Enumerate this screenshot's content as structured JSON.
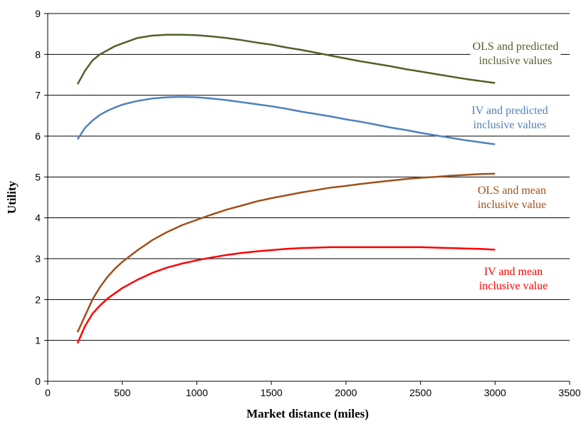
{
  "chart_data": {
    "type": "line",
    "title": "",
    "xlabel": "Market distance (miles)",
    "ylabel": "Utility",
    "xlim": [
      0,
      3500
    ],
    "ylim": [
      0,
      9
    ],
    "xticks": [
      0,
      500,
      1000,
      1500,
      2000,
      2500,
      3000,
      3500
    ],
    "yticks": [
      0,
      1,
      2,
      3,
      4,
      5,
      6,
      7,
      8,
      9
    ],
    "grid": "horizontal",
    "legend": "none",
    "annotations": [
      {
        "series": 0,
        "lines": [
          "OLS and predicted",
          "inclusive values"
        ]
      },
      {
        "series": 1,
        "lines": [
          "IV and predicted",
          "inclusive values"
        ]
      },
      {
        "series": 2,
        "lines": [
          "OLS and mean",
          "inclusive value"
        ]
      },
      {
        "series": 3,
        "lines": [
          "IV and mean",
          "inclusive value"
        ]
      }
    ],
    "series": [
      {
        "color": "#4f6228",
        "x": [
          200,
          250,
          300,
          350,
          400,
          450,
          500,
          600,
          700,
          800,
          900,
          1000,
          1100,
          1200,
          1300,
          1400,
          1500,
          1600,
          1700,
          1800,
          1900,
          2000,
          2100,
          2200,
          2300,
          2400,
          2500,
          2600,
          2700,
          2800,
          2900,
          3000
        ],
        "y": [
          7.27,
          7.6,
          7.85,
          8.0,
          8.1,
          8.2,
          8.27,
          8.4,
          8.46,
          8.48,
          8.48,
          8.47,
          8.44,
          8.4,
          8.35,
          8.29,
          8.24,
          8.17,
          8.11,
          8.04,
          7.97,
          7.9,
          7.83,
          7.77,
          7.71,
          7.64,
          7.58,
          7.52,
          7.46,
          7.4,
          7.35,
          7.3
        ]
      },
      {
        "color": "#4f81bd",
        "x": [
          200,
          250,
          300,
          350,
          400,
          450,
          500,
          600,
          700,
          800,
          900,
          1000,
          1100,
          1200,
          1300,
          1400,
          1500,
          1600,
          1700,
          1800,
          1900,
          2000,
          2100,
          2200,
          2300,
          2400,
          2500,
          2600,
          2700,
          2800,
          2900,
          3000
        ],
        "y": [
          5.92,
          6.2,
          6.38,
          6.52,
          6.62,
          6.7,
          6.77,
          6.86,
          6.92,
          6.95,
          6.96,
          6.95,
          6.92,
          6.88,
          6.83,
          6.78,
          6.73,
          6.67,
          6.6,
          6.54,
          6.48,
          6.41,
          6.35,
          6.28,
          6.21,
          6.15,
          6.08,
          6.02,
          5.96,
          5.9,
          5.85,
          5.8
        ]
      },
      {
        "color": "#a0501a",
        "x": [
          200,
          250,
          300,
          350,
          400,
          450,
          500,
          600,
          700,
          800,
          900,
          1000,
          1100,
          1200,
          1300,
          1400,
          1500,
          1600,
          1700,
          1800,
          1900,
          2000,
          2100,
          2200,
          2300,
          2400,
          2500,
          2600,
          2700,
          2800,
          2900,
          3000
        ],
        "y": [
          1.2,
          1.6,
          2.0,
          2.3,
          2.55,
          2.75,
          2.92,
          3.2,
          3.45,
          3.65,
          3.82,
          3.95,
          4.08,
          4.2,
          4.3,
          4.4,
          4.48,
          4.55,
          4.62,
          4.68,
          4.74,
          4.78,
          4.83,
          4.87,
          4.91,
          4.95,
          4.98,
          5.0,
          5.03,
          5.05,
          5.07,
          5.08
        ]
      },
      {
        "color": "#ff0000",
        "x": [
          200,
          250,
          300,
          350,
          400,
          450,
          500,
          600,
          700,
          800,
          900,
          1000,
          1100,
          1200,
          1300,
          1400,
          1500,
          1600,
          1700,
          1800,
          1900,
          2000,
          2100,
          2200,
          2300,
          2400,
          2500,
          2600,
          2700,
          2800,
          2900,
          3000
        ],
        "y": [
          0.93,
          1.35,
          1.65,
          1.85,
          2.02,
          2.15,
          2.28,
          2.48,
          2.65,
          2.78,
          2.88,
          2.96,
          3.03,
          3.09,
          3.14,
          3.18,
          3.21,
          3.24,
          3.26,
          3.27,
          3.28,
          3.28,
          3.28,
          3.28,
          3.28,
          3.28,
          3.28,
          3.27,
          3.26,
          3.25,
          3.24,
          3.22
        ]
      }
    ]
  }
}
